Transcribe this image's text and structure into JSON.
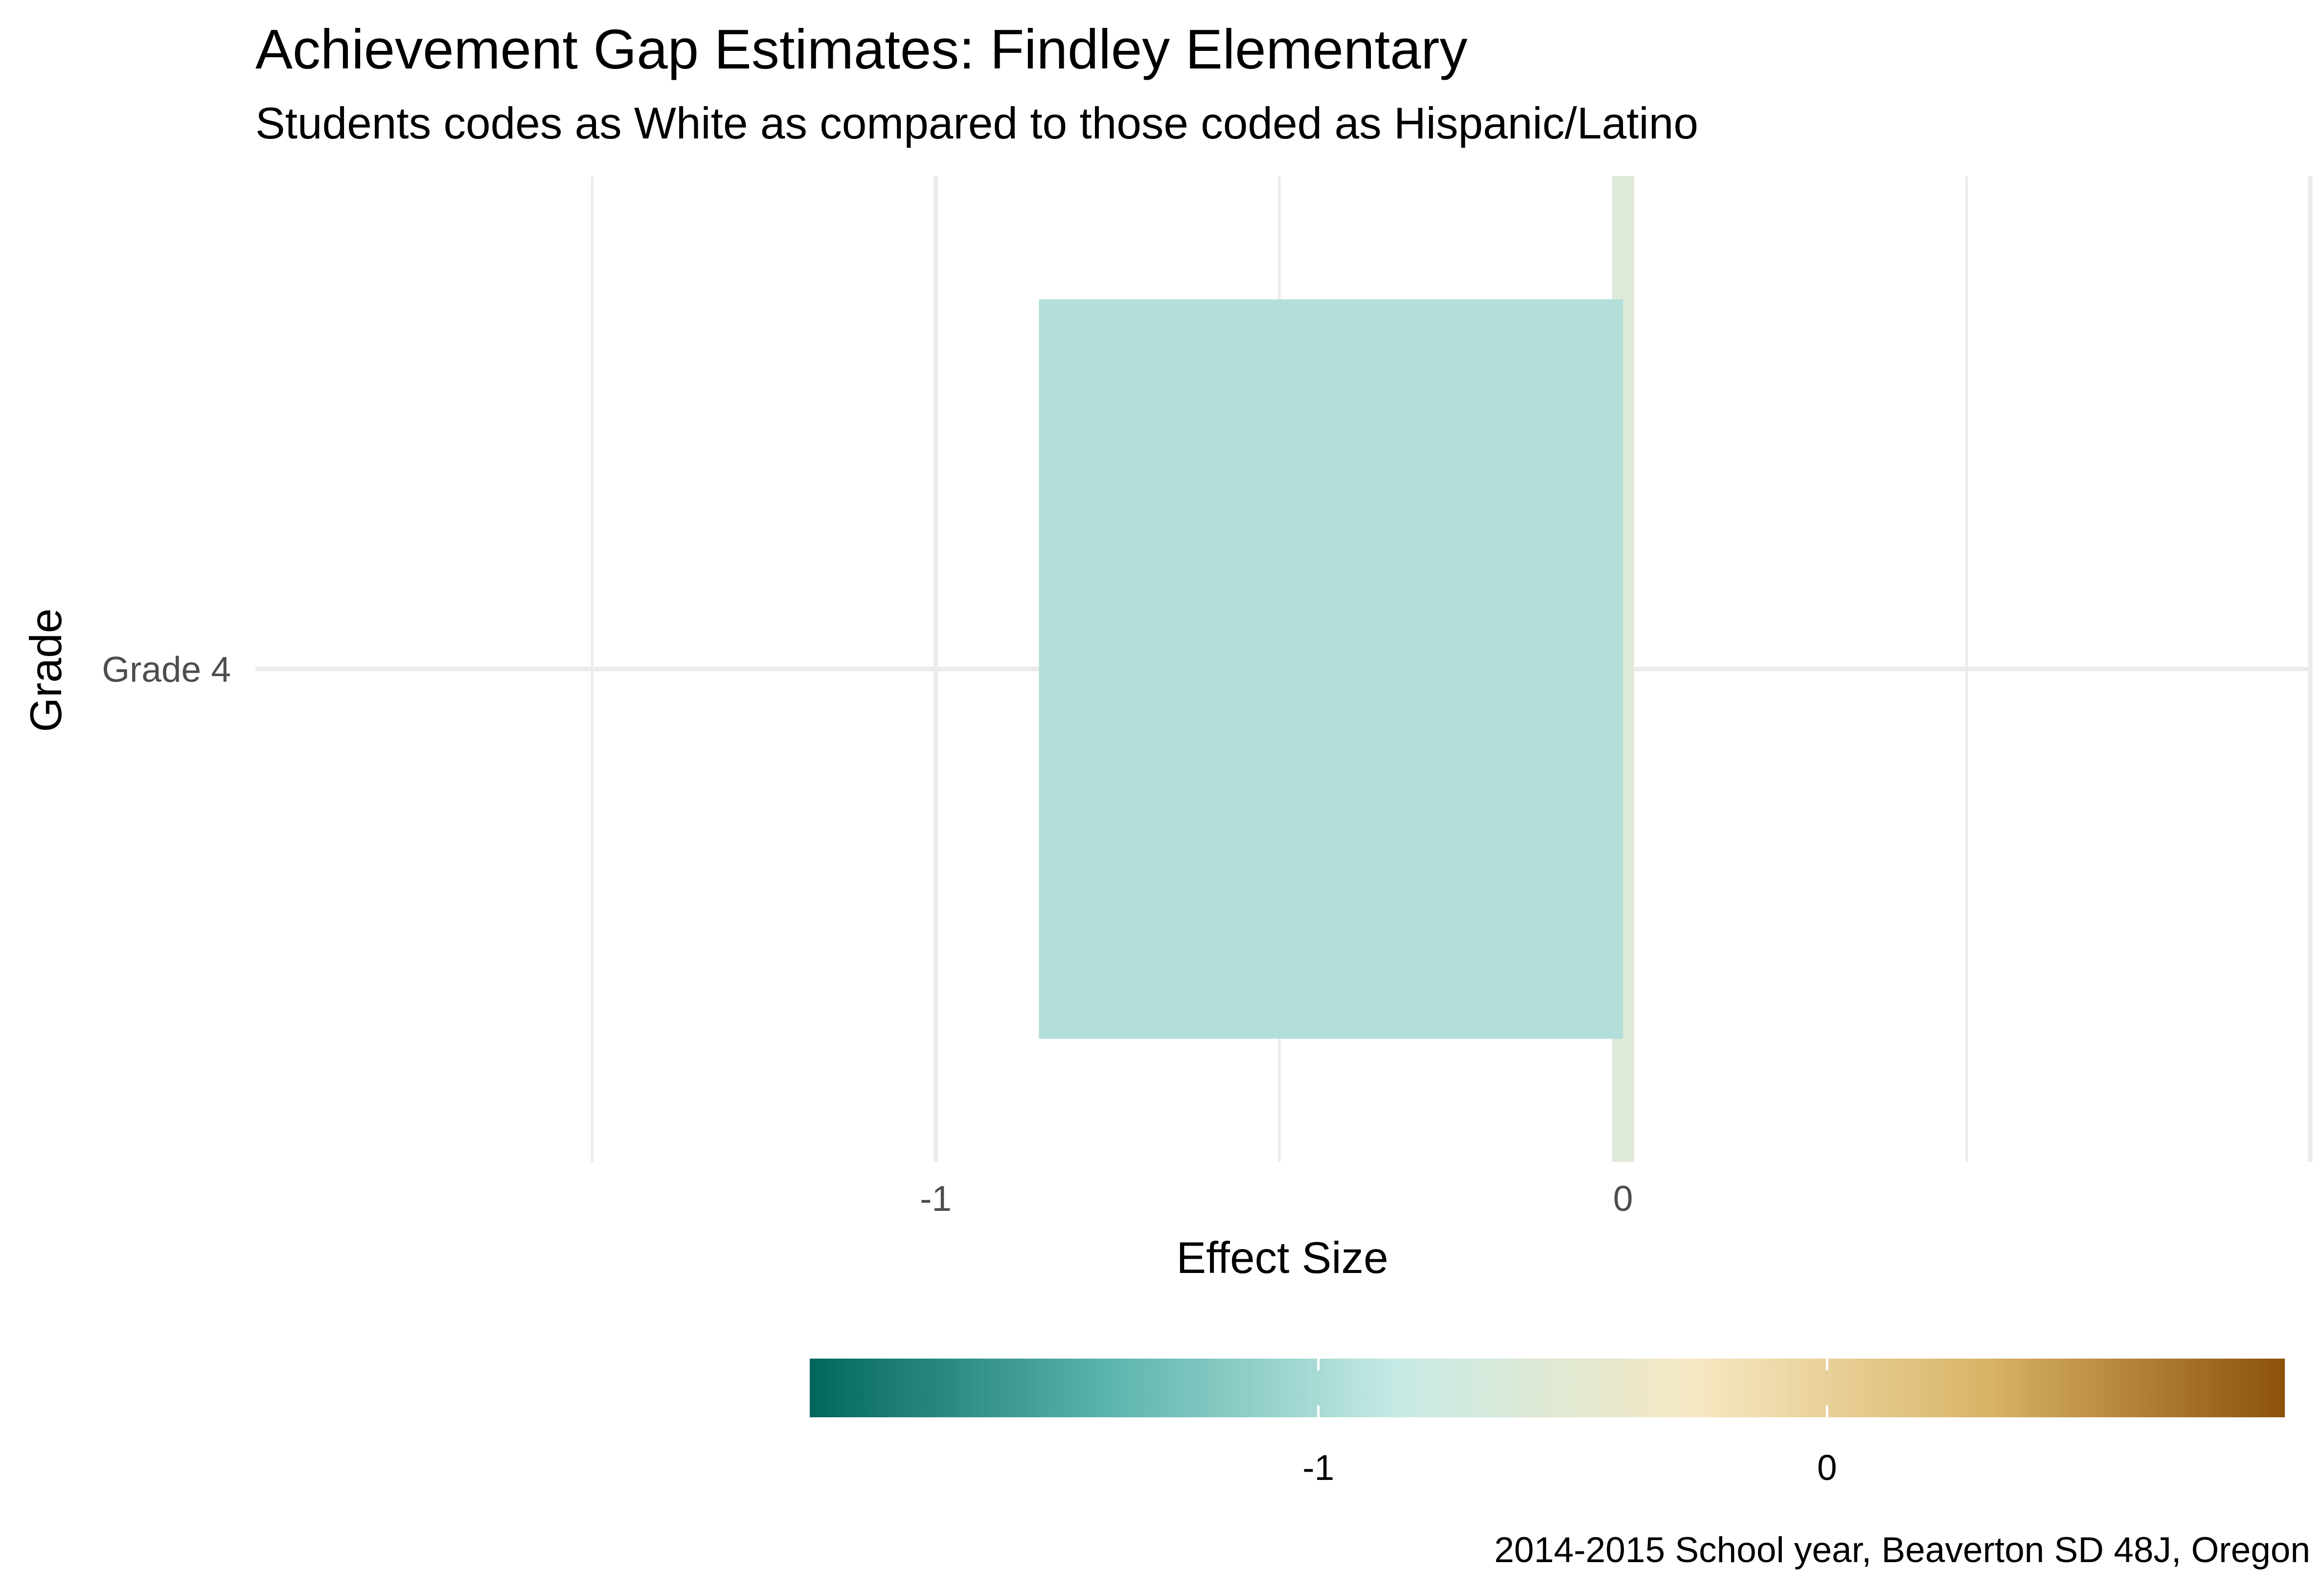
{
  "chart_data": {
    "type": "bar",
    "orientation": "horizontal",
    "title": "Achievement Gap Estimates: Findley Elementary",
    "subtitle": "Students codes as White as compared to those coded as Hispanic/Latino",
    "xlabel": "Effect Size",
    "ylabel": "Grade",
    "caption": "2014-2015 School year, Beaverton SD 48J, Oregon",
    "categories": [
      "Grade 4"
    ],
    "values": [
      -0.85
    ],
    "xlim": [
      -1.99,
      1.0
    ],
    "x_ticks": [
      -1,
      0
    ],
    "x_tick_labels": [
      "-1",
      "0"
    ],
    "grid": true,
    "reference_line": {
      "x": 0,
      "color": "#dfe9d8"
    },
    "bar_colors": [
      "#b3dfda"
    ],
    "legend": {
      "position": "bottom",
      "type": "colorbar",
      "range": [
        -2.0,
        0.9
      ],
      "ticks": [
        -1,
        0
      ],
      "tick_labels": [
        "-1",
        "0"
      ],
      "colors": [
        "#01665e",
        "#5ab4ac",
        "#c7eae5",
        "#f6e8c3",
        "#d8b365",
        "#8c510a"
      ]
    }
  }
}
